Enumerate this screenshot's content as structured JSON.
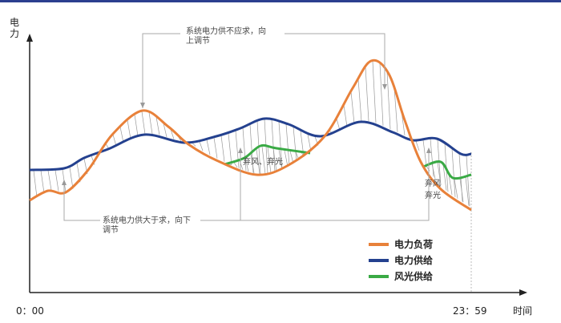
{
  "axes": {
    "y_label": "电力",
    "x_start": "0：00",
    "x_end": "23：59",
    "x_label": "时间"
  },
  "annotations": {
    "top": [
      "系统电力供不应求，向",
      "上调节"
    ],
    "bottom": [
      "系统电力供大于求，向下",
      "调节"
    ],
    "curtail_middle": "弃风、弃光",
    "curtail_right": [
      "弃风",
      "弃光"
    ]
  },
  "legend": [
    "电力负荷",
    "电力供给",
    "风光供给"
  ]
}
